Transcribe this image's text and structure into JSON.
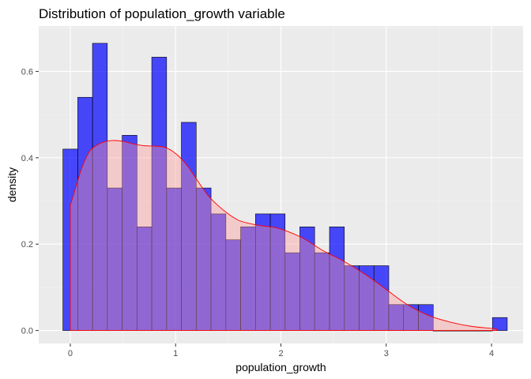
{
  "chart_data": {
    "type": "bar",
    "title": "Distribution of population_growth variable",
    "xlabel": "population_growth",
    "ylabel": "density",
    "xlim": [
      -0.3,
      4.3
    ],
    "ylim": [
      -0.03,
      0.705
    ],
    "x_ticks": [
      0,
      1,
      2,
      3,
      4
    ],
    "x_tick_labels": [
      "0",
      "1",
      "2",
      "3",
      "4"
    ],
    "y_ticks": [
      0.0,
      0.2,
      0.4,
      0.6
    ],
    "y_tick_labels": [
      "0.0",
      "0.2",
      "0.4",
      "0.6"
    ],
    "grid": true,
    "legend": "none",
    "colors": {
      "panel_background": "#EBEBEB",
      "grid_major": "#FFFFFF",
      "grid_minor": "#F5F5F5",
      "bar_fill": "#0000FF",
      "bar_outline": "#000000",
      "density_fill": "#FF9999",
      "density_line": "#FF0000"
    },
    "histogram": {
      "bin_width": 0.1407,
      "bins": [
        {
          "x": 0.0,
          "density": 0.42
        },
        {
          "x": 0.141,
          "density": 0.54
        },
        {
          "x": 0.281,
          "density": 0.665
        },
        {
          "x": 0.422,
          "density": 0.33
        },
        {
          "x": 0.563,
          "density": 0.452
        },
        {
          "x": 0.703,
          "density": 0.24
        },
        {
          "x": 0.844,
          "density": 0.633
        },
        {
          "x": 0.985,
          "density": 0.33
        },
        {
          "x": 1.125,
          "density": 0.482
        },
        {
          "x": 1.266,
          "density": 0.33
        },
        {
          "x": 1.407,
          "density": 0.27
        },
        {
          "x": 1.547,
          "density": 0.21
        },
        {
          "x": 1.688,
          "density": 0.24
        },
        {
          "x": 1.829,
          "density": 0.27
        },
        {
          "x": 1.969,
          "density": 0.27
        },
        {
          "x": 2.11,
          "density": 0.18
        },
        {
          "x": 2.25,
          "density": 0.24
        },
        {
          "x": 2.391,
          "density": 0.18
        },
        {
          "x": 2.532,
          "density": 0.24
        },
        {
          "x": 2.673,
          "density": 0.15
        },
        {
          "x": 2.813,
          "density": 0.15
        },
        {
          "x": 2.954,
          "density": 0.15
        },
        {
          "x": 3.094,
          "density": 0.06
        },
        {
          "x": 3.235,
          "density": 0.06
        },
        {
          "x": 3.376,
          "density": 0.06
        },
        {
          "x": 3.516,
          "density": 0.0
        },
        {
          "x": 3.657,
          "density": 0.0
        },
        {
          "x": 3.798,
          "density": 0.0
        },
        {
          "x": 3.938,
          "density": 0.0
        },
        {
          "x": 4.079,
          "density": 0.03
        }
      ]
    },
    "density_curve": {
      "x": [
        0.0,
        0.05,
        0.1,
        0.15,
        0.2,
        0.3,
        0.4,
        0.5,
        0.6,
        0.7,
        0.8,
        0.9,
        1.0,
        1.1,
        1.2,
        1.3,
        1.4,
        1.5,
        1.6,
        1.7,
        1.8,
        1.9,
        2.0,
        2.2,
        2.4,
        2.6,
        2.8,
        3.0,
        3.2,
        3.4,
        3.6,
        3.8,
        4.0,
        4.05
      ],
      "y": [
        0.29,
        0.33,
        0.37,
        0.4,
        0.42,
        0.435,
        0.44,
        0.438,
        0.432,
        0.428,
        0.427,
        0.424,
        0.41,
        0.385,
        0.35,
        0.315,
        0.29,
        0.27,
        0.255,
        0.248,
        0.243,
        0.24,
        0.235,
        0.215,
        0.185,
        0.16,
        0.13,
        0.095,
        0.06,
        0.035,
        0.02,
        0.01,
        0.005,
        0.003
      ]
    }
  }
}
